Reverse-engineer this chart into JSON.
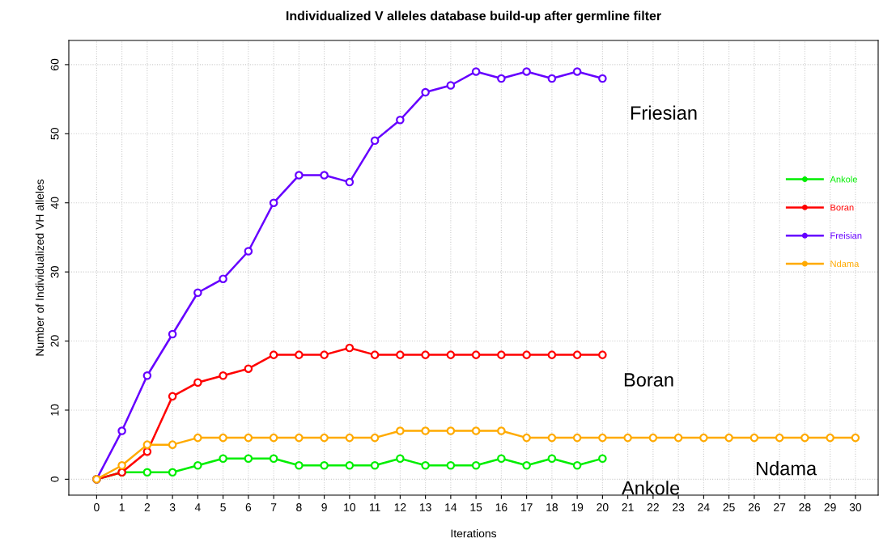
{
  "chart_data": {
    "type": "line",
    "title": "Individualized V alleles database build-up after germline filter",
    "xlabel": "Iterations",
    "ylabel": "Number of Individualized VH alleles",
    "xlim": [
      -1.1,
      30.9
    ],
    "ylim": [
      -2.3,
      63.5
    ],
    "xticks": [
      0,
      1,
      2,
      3,
      4,
      5,
      6,
      7,
      8,
      9,
      10,
      11,
      12,
      13,
      14,
      15,
      16,
      17,
      18,
      19,
      20,
      21,
      22,
      23,
      24,
      25,
      26,
      27,
      28,
      29,
      30
    ],
    "yticks": [
      0,
      10,
      20,
      30,
      40,
      50,
      60
    ],
    "series": [
      {
        "name": "Ankole",
        "color": "#00ee00",
        "x": [
          0,
          1,
          2,
          3,
          4,
          5,
          6,
          7,
          8,
          9,
          10,
          11,
          12,
          13,
          14,
          15,
          16,
          17,
          18,
          19,
          20
        ],
        "values": [
          0,
          1,
          1,
          1,
          2,
          3,
          3,
          3,
          2,
          2,
          2,
          2,
          3,
          2,
          2,
          2,
          3,
          2,
          3,
          2,
          3
        ]
      },
      {
        "name": "Boran",
        "color": "#ff0000",
        "x": [
          0,
          1,
          2,
          3,
          4,
          5,
          6,
          7,
          8,
          9,
          10,
          11,
          12,
          13,
          14,
          15,
          16,
          17,
          18,
          19,
          20
        ],
        "values": [
          0,
          1,
          4,
          12,
          14,
          15,
          16,
          18,
          18,
          18,
          19,
          18,
          18,
          18,
          18,
          18,
          18,
          18,
          18,
          18,
          18
        ]
      },
      {
        "name": "Freisian",
        "color": "#6600ff",
        "x": [
          0,
          1,
          2,
          3,
          4,
          5,
          6,
          7,
          8,
          9,
          10,
          11,
          12,
          13,
          14,
          15,
          16,
          17,
          18,
          19,
          20
        ],
        "values": [
          0,
          7,
          15,
          21,
          27,
          29,
          33,
          40,
          44,
          44,
          43,
          49,
          52,
          56,
          57,
          59,
          58,
          59,
          58,
          59,
          58
        ]
      },
      {
        "name": "Ndama",
        "color": "#ffaa00",
        "x": [
          0,
          1,
          2,
          3,
          4,
          5,
          6,
          7,
          8,
          9,
          10,
          11,
          12,
          13,
          14,
          15,
          16,
          17,
          18,
          19,
          20,
          21,
          22,
          23,
          24,
          25,
          26,
          27,
          28,
          29,
          30
        ],
        "values": [
          0,
          2,
          5,
          5,
          6,
          6,
          6,
          6,
          6,
          6,
          6,
          6,
          7,
          7,
          7,
          7,
          7,
          6,
          6,
          6,
          6,
          6,
          6,
          6,
          6,
          6,
          6,
          6,
          6,
          6,
          6
        ]
      }
    ],
    "annotations": [
      "Friesian",
      "Boran",
      "Ndama",
      "Ankole"
    ],
    "marker": "circle",
    "line_style": "solid",
    "grid": true,
    "legend": "right"
  }
}
